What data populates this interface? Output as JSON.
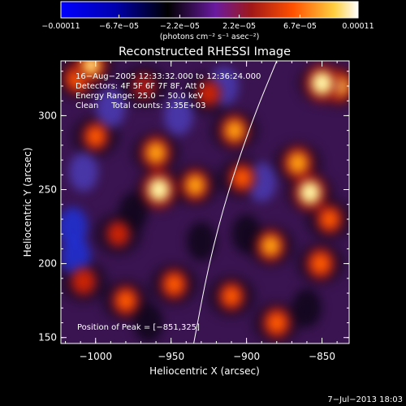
{
  "chart_data": {
    "type": "heatmap",
    "title": "Reconstructed RHESSI Image",
    "xlabel": "Heliocentric X (arcsec)",
    "ylabel": "Heliocentric Y (arcsec)",
    "xlim": [
      -1023,
      -832
    ],
    "ylim": [
      146,
      337
    ],
    "x_ticks": [
      -1000,
      -950,
      -900,
      -850
    ],
    "x_tick_labels": [
      "−1000",
      "−950",
      "−900",
      "−850"
    ],
    "y_ticks": [
      150,
      200,
      250,
      300
    ],
    "y_tick_labels": [
      "150",
      "200",
      "250",
      "300"
    ],
    "colorbar": {
      "ticks": [
        -0.00011,
        -6.7e-05,
        -2.2e-05,
        2.2e-05,
        6.7e-05,
        0.00011
      ],
      "tick_labels": [
        "−0.00011",
        "−6.7e−05",
        "−2.2e−05",
        "2.2e−05",
        "6.7e−05",
        "0.00011"
      ],
      "units": "(photons cm⁻² s⁻¹ asec⁻²)",
      "colormap": [
        "#0000ff",
        "#0000c0",
        "#000000",
        "#5a1570",
        "#8b1a1a",
        "#d02000",
        "#ff8000",
        "#ffe060",
        "#ffffff"
      ]
    },
    "annotations": [
      "16−Aug−2005 12:33:32.000 to 12:36:24.000",
      "Detectors: 4F 5F 6F 7F 8F, Att 0",
      "Energy Range: 25.0 − 50.0 keV",
      "Clean     Total counts: 3.35E+03"
    ],
    "peak_label": "Position of Peak = [−851,325]",
    "peak": [
      -851,
      325
    ],
    "limb_curve": [
      [
        -935,
        146
      ],
      [
        -925,
        200
      ],
      [
        -912,
        250
      ],
      [
        -895,
        300
      ],
      [
        -880,
        337
      ]
    ],
    "blobs": [
      {
        "x": -850,
        "y": 322,
        "v": 1.0
      },
      {
        "x": -839,
        "y": 320,
        "v": 0.85
      },
      {
        "x": -858,
        "y": 248,
        "v": 0.95
      },
      {
        "x": -866,
        "y": 268,
        "v": 0.8
      },
      {
        "x": -851,
        "y": 200,
        "v": 0.7
      },
      {
        "x": -845,
        "y": 230,
        "v": 0.6
      },
      {
        "x": -1003,
        "y": 334,
        "v": 0.85
      },
      {
        "x": -1012,
        "y": 325,
        "v": 0.7
      },
      {
        "x": -1000,
        "y": 286,
        "v": 0.6
      },
      {
        "x": -958,
        "y": 250,
        "v": 1.0
      },
      {
        "x": -960,
        "y": 275,
        "v": 0.8
      },
      {
        "x": -934,
        "y": 253,
        "v": 0.75
      },
      {
        "x": -908,
        "y": 290,
        "v": 0.75
      },
      {
        "x": -903,
        "y": 258,
        "v": 0.6
      },
      {
        "x": -884,
        "y": 212,
        "v": 0.75
      },
      {
        "x": -880,
        "y": 160,
        "v": 0.7
      },
      {
        "x": -948,
        "y": 186,
        "v": 0.65
      },
      {
        "x": -980,
        "y": 175,
        "v": 0.65
      },
      {
        "x": -1008,
        "y": 188,
        "v": 0.55
      },
      {
        "x": -910,
        "y": 178,
        "v": 0.6
      },
      {
        "x": -985,
        "y": 220,
        "v": 0.45
      },
      {
        "x": -925,
        "y": 315,
        "v": 0.45
      },
      {
        "x": -968,
        "y": 320,
        "v": 0.4
      },
      {
        "x": -975,
        "y": 235,
        "v": -0.45
      },
      {
        "x": -1015,
        "y": 225,
        "v": -0.7
      },
      {
        "x": -1013,
        "y": 205,
        "v": -0.75
      },
      {
        "x": -1008,
        "y": 262,
        "v": -0.6
      },
      {
        "x": -990,
        "y": 305,
        "v": -0.55
      },
      {
        "x": -945,
        "y": 300,
        "v": -0.55
      },
      {
        "x": -915,
        "y": 320,
        "v": -0.5
      },
      {
        "x": -890,
        "y": 255,
        "v": -0.5
      },
      {
        "x": -930,
        "y": 215,
        "v": -0.45
      },
      {
        "x": -860,
        "y": 170,
        "v": -0.45
      },
      {
        "x": -900,
        "y": 220,
        "v": -0.4
      },
      {
        "x": -965,
        "y": 160,
        "v": -0.4
      }
    ]
  },
  "footer": {
    "timestamp": "7−Jul−2013 18:03"
  }
}
